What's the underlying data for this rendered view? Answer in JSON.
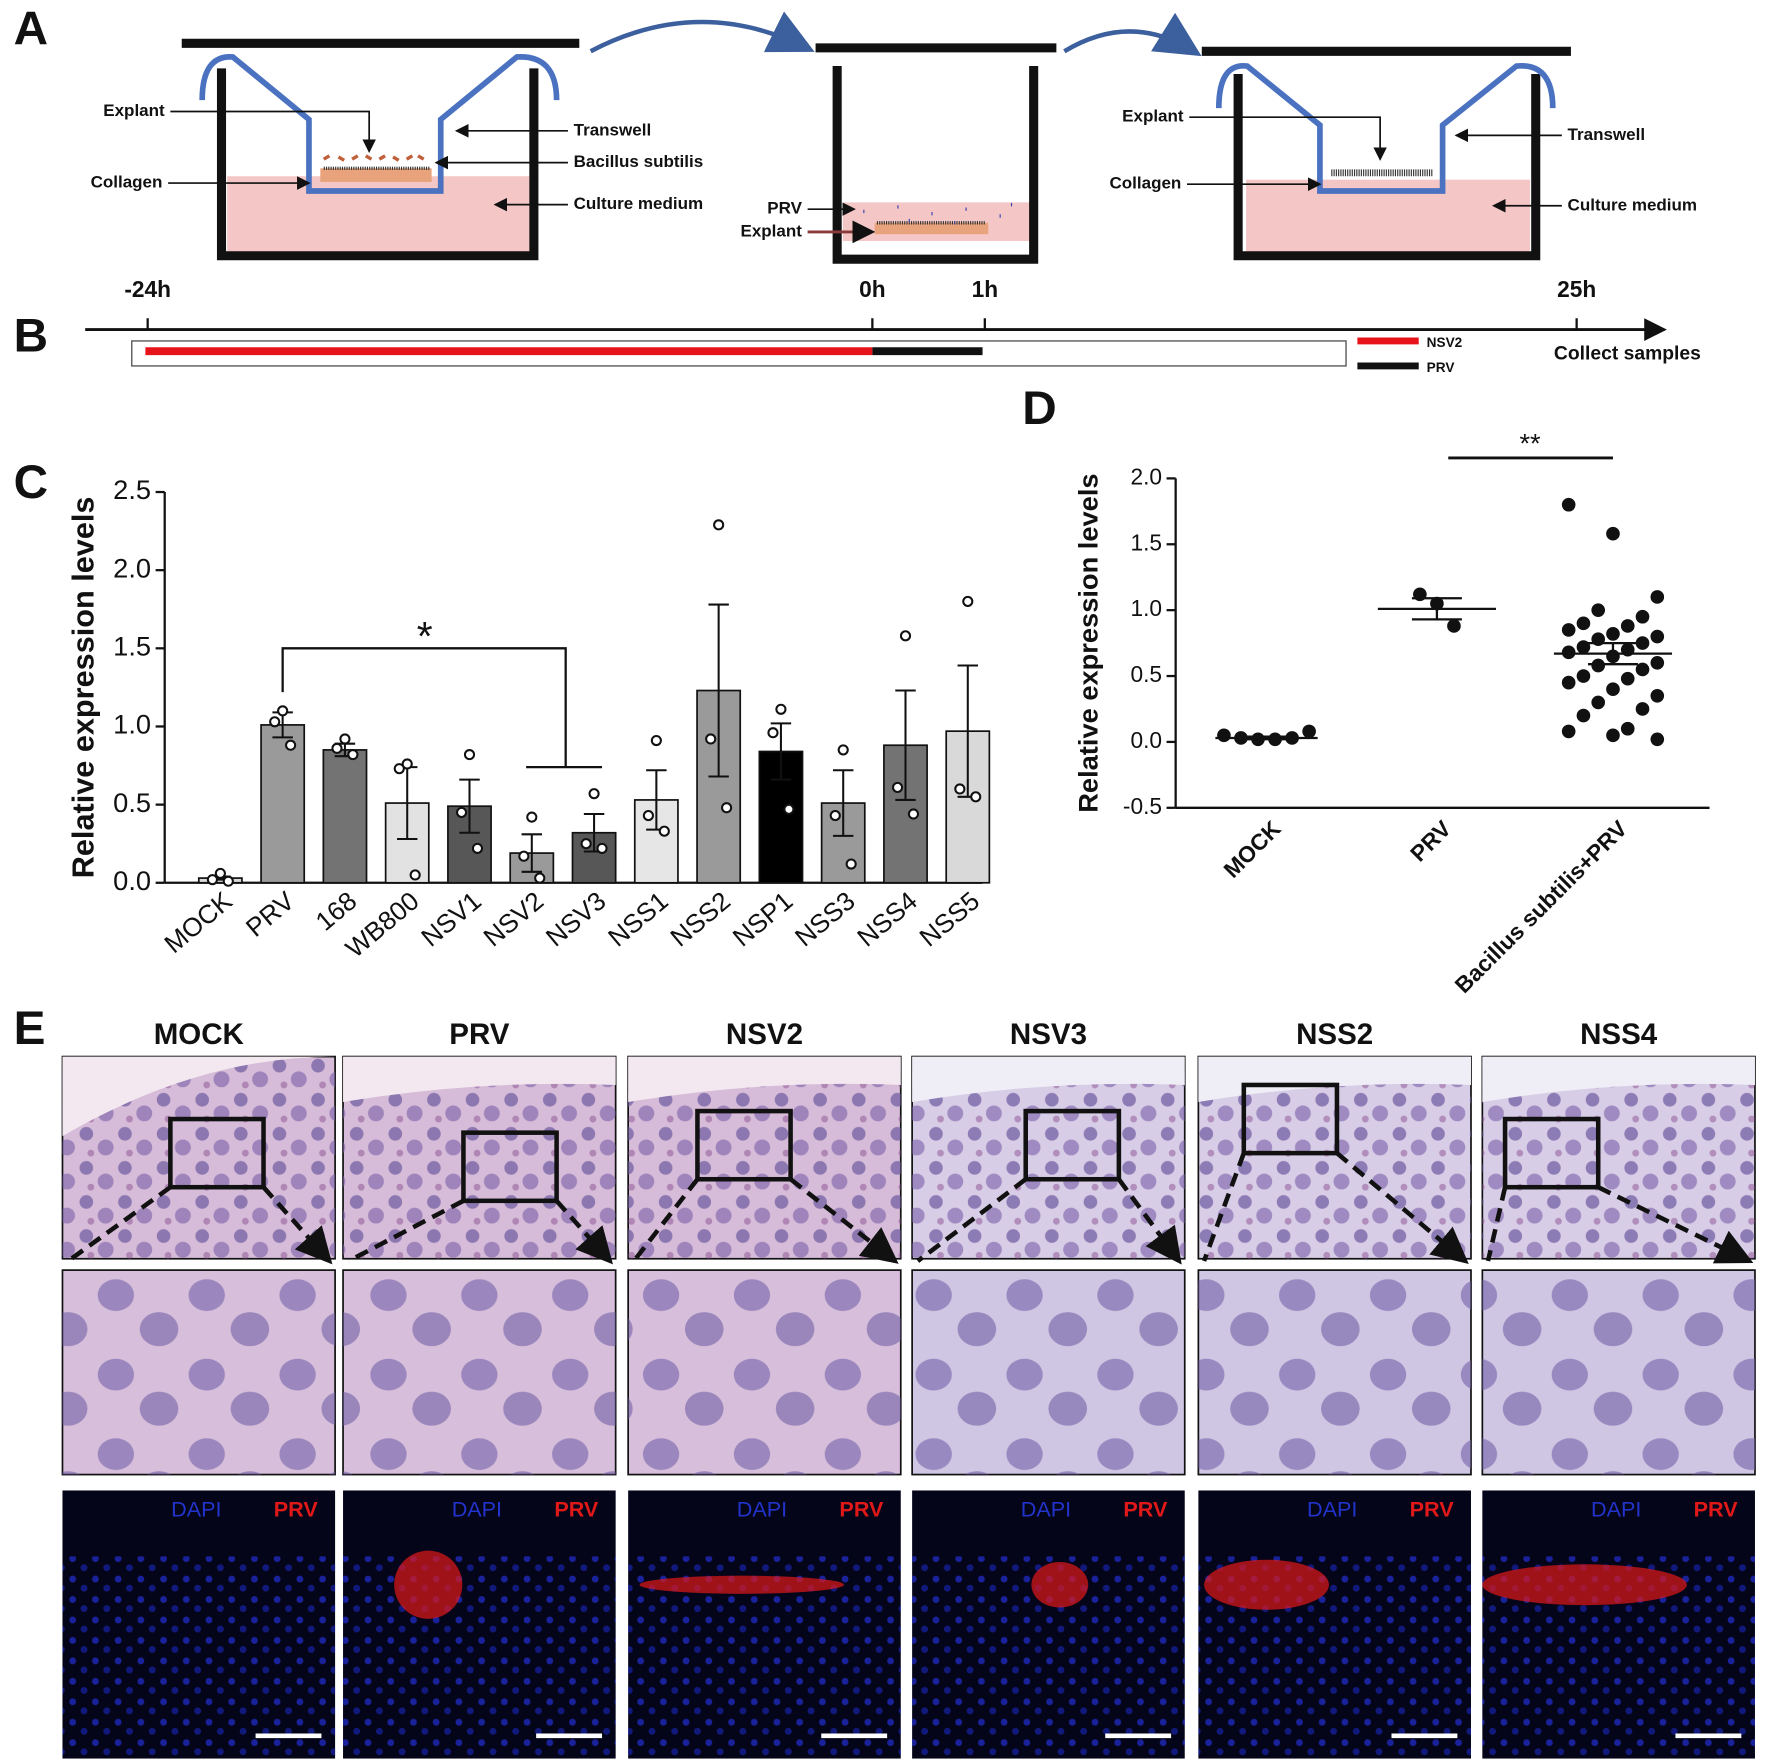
{
  "panel_labels": [
    "A",
    "B",
    "C",
    "D",
    "E"
  ],
  "schematic": {
    "step1": {
      "explant": "Explant",
      "transwell": "Transwell",
      "bacteria": "Bacillus subtilis",
      "collagen": "Collagen",
      "medium": "Culture medium"
    },
    "step2": {
      "virus": "PRV",
      "explant": "Explant"
    },
    "step3": {
      "explant": "Explant",
      "transwell": "Transwell",
      "collagen": "Collagen",
      "medium": "Culture medium"
    }
  },
  "timeline": {
    "ticks": [
      "-24h",
      "0h",
      "1h",
      "25h"
    ],
    "end_label": "Collect samples",
    "legend": [
      {
        "name": "NSV2",
        "color": "#e8141b"
      },
      {
        "name": "PRV",
        "color": "#111111"
      }
    ]
  },
  "chart_data": [
    {
      "type": "bar",
      "ylabel": "Relative expression levels",
      "categories": [
        "MOCK",
        "PRV",
        "168",
        "WB800",
        "NSV1",
        "NSV2",
        "NSV3",
        "NSS1",
        "NSS2",
        "NSP1",
        "NSS3",
        "NSS4",
        "NSS5"
      ],
      "values": [
        0.03,
        1.01,
        0.85,
        0.51,
        0.49,
        0.19,
        0.32,
        0.53,
        1.23,
        0.84,
        0.51,
        0.88,
        0.97
      ],
      "errors": [
        0.01,
        0.08,
        0.04,
        0.23,
        0.17,
        0.12,
        0.12,
        0.19,
        0.55,
        0.18,
        0.21,
        0.35,
        0.42
      ],
      "points": [
        [
          0.06,
          0.02,
          0.01
        ],
        [
          1.1,
          1.03,
          0.88
        ],
        [
          0.92,
          0.86,
          0.82
        ],
        [
          0.76,
          0.73,
          0.05
        ],
        [
          0.82,
          0.45,
          0.22
        ],
        [
          0.42,
          0.17,
          0.03
        ],
        [
          0.57,
          0.25,
          0.22
        ],
        [
          0.91,
          0.43,
          0.33
        ],
        [
          2.29,
          0.92,
          0.48
        ],
        [
          1.11,
          0.96,
          0.47
        ],
        [
          0.85,
          0.43,
          0.12
        ],
        [
          1.58,
          0.61,
          0.44
        ],
        [
          1.8,
          0.6,
          0.55
        ]
      ],
      "colors": [
        "#d9d9d9",
        "#9a9a9a",
        "#737373",
        "#e2e2e2",
        "#575757",
        "#9a9a9a",
        "#575757",
        "#e6e6e6",
        "#9a9a9a",
        "#000000",
        "#9a9a9a",
        "#737373",
        "#d9d9d9"
      ],
      "ylim": [
        0,
        2.5
      ],
      "yticks": [
        {
          "value": 0,
          "label": "0.0"
        },
        0.5,
        {
          "value": 1,
          "label": "1.0"
        },
        1.5,
        {
          "value": 2,
          "label": "2.0"
        },
        2.5
      ],
      "annotation": "*"
    },
    {
      "type": "scatter",
      "ylabel": "Relative expression levels",
      "categories": [
        "MOCK",
        "PRV",
        "Bacillus subtilis+PRV"
      ],
      "points": [
        [
          0.05,
          0.03,
          0.02,
          0.02,
          0.03,
          0.08
        ],
        [
          1.12,
          1.05,
          0.88
        ],
        [
          1.8,
          1.58,
          1.1,
          1.0,
          0.95,
          0.9,
          0.88,
          0.85,
          0.82,
          0.8,
          0.78,
          0.75,
          0.72,
          0.7,
          0.68,
          0.65,
          0.6,
          0.58,
          0.55,
          0.5,
          0.48,
          0.45,
          0.4,
          0.35,
          0.3,
          0.25,
          0.2,
          0.1,
          0.08,
          0.05,
          0.02
        ]
      ],
      "means": [
        0.03,
        1.01,
        0.67
      ],
      "errors": [
        0.01,
        0.08,
        0.08
      ],
      "ylim": [
        -0.5,
        2.0
      ],
      "yticks": [
        -0.5,
        {
          "value": 0,
          "label": "0.0"
        },
        0.5,
        {
          "value": 1,
          "label": "1.0"
        },
        1.5,
        {
          "value": 2,
          "label": "2.0"
        }
      ],
      "annotation": "**"
    }
  ],
  "histology": {
    "columns": [
      "MOCK",
      "PRV",
      "NSV2",
      "NSV3",
      "NSS2",
      "NSS4"
    ],
    "stain_labels": {
      "dapi": "DAPI",
      "virus": "PRV"
    }
  }
}
